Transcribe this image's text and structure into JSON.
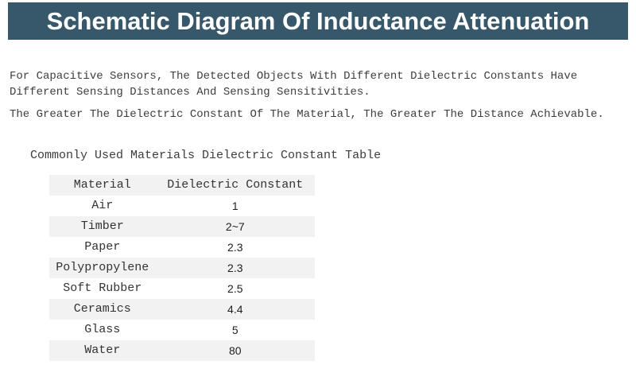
{
  "banner": {
    "title": "Schematic Diagram Of Inductance Attenuation",
    "bg_color": "#37586B",
    "text_color": "#FFFFFF"
  },
  "paragraphs": [
    "For Capacitive Sensors, The Detected Objects With Different Dielectric Constants Have Different Sensing Distances And Sensing Sensitivities.",
    "The Greater The Dielectric Constant Of The Material, The Greater The Distance Achievable."
  ],
  "table": {
    "title": "Commonly Used Materials Dielectric Constant Table",
    "headers": [
      "Material",
      "Dielectric Constant"
    ],
    "rows": [
      {
        "material": "Air",
        "constant": "1"
      },
      {
        "material": "Timber",
        "constant": "2~7"
      },
      {
        "material": "Paper",
        "constant": "2.3"
      },
      {
        "material": "Polypropylene",
        "constant": "2.3"
      },
      {
        "material": "Soft Rubber",
        "constant": "2.5"
      },
      {
        "material": "Ceramics",
        "constant": "4.4"
      },
      {
        "material": "Glass",
        "constant": "5"
      },
      {
        "material": "Water",
        "constant": "80"
      }
    ],
    "alt_row_color": "#F2F2F2"
  }
}
